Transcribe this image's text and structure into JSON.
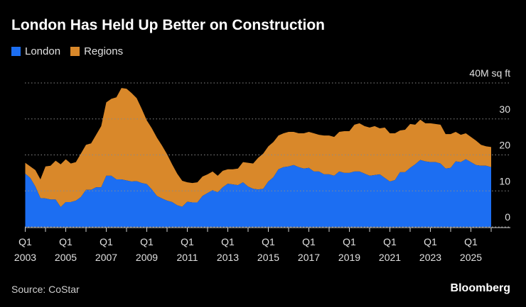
{
  "title": "London Has Held Up Better on Construction",
  "source": "Source: CoStar",
  "brand": "Bloomberg",
  "colors": {
    "London": "#1c6ef2",
    "Regions": "#d9882a",
    "background": "#000000"
  },
  "chart_data": {
    "type": "area",
    "stacked": true,
    "title": "London Has Held Up Better on Construction",
    "ylabel": "40M sq ft",
    "ylim": [
      0,
      40
    ],
    "yticks": [
      0,
      10,
      20,
      30
    ],
    "grid": true,
    "legend_position": "top-left",
    "x_tick_labels": [
      {
        "q": "Q1",
        "year": "2003",
        "i": 0
      },
      {
        "q": "Q1",
        "year": "2005",
        "i": 8
      },
      {
        "q": "Q1",
        "year": "2007",
        "i": 16
      },
      {
        "q": "Q1",
        "year": "2009",
        "i": 24
      },
      {
        "q": "Q1",
        "year": "2011",
        "i": 32
      },
      {
        "q": "Q1",
        "year": "2013",
        "i": 40
      },
      {
        "q": "Q1",
        "year": "2015",
        "i": 48
      },
      {
        "q": "Q1",
        "year": "2017",
        "i": 56
      },
      {
        "q": "Q1",
        "year": "2019",
        "i": 64
      },
      {
        "q": "Q1",
        "year": "2021",
        "i": 72
      },
      {
        "q": "Q1",
        "year": "2023",
        "i": 80
      },
      {
        "q": "Q1",
        "year": "2025",
        "i": 88
      }
    ],
    "series": [
      {
        "name": "London",
        "values": [
          14.8,
          13.6,
          11.2,
          8.0,
          7.9,
          7.6,
          7.6,
          5.5,
          6.9,
          6.9,
          7.3,
          8.3,
          10.3,
          10.3,
          11.0,
          11.0,
          14.2,
          14.2,
          13.2,
          13.2,
          12.9,
          12.6,
          12.7,
          12.2,
          11.9,
          10.4,
          8.6,
          7.9,
          7.3,
          6.9,
          6.0,
          5.6,
          7.0,
          6.8,
          6.8,
          8.6,
          9.4,
          10.2,
          9.6,
          11.0,
          12.0,
          11.8,
          11.6,
          12.4,
          11.2,
          10.6,
          10.4,
          10.6,
          12.6,
          13.8,
          16.0,
          16.6,
          16.8,
          17.2,
          16.6,
          16.2,
          16.4,
          15.4,
          15.4,
          14.6,
          14.6,
          14.2,
          15.4,
          15.0,
          15.0,
          15.4,
          15.4,
          14.8,
          14.2,
          14.4,
          14.6,
          13.6,
          12.6,
          13.0,
          15.2,
          15.2,
          16.4,
          17.4,
          18.6,
          18.2,
          18.0,
          18.0,
          17.6,
          16.2,
          16.4,
          18.2,
          18.0,
          18.8,
          18.0,
          17.2,
          17.0,
          17.0,
          16.6
        ],
        "total": [
          17.8,
          16.8,
          15.8,
          13.2,
          16.8,
          17.0,
          18.4,
          17.4,
          18.8,
          17.6,
          18.0,
          20.4,
          22.8,
          23.2,
          25.6,
          28.0,
          34.6,
          35.6,
          36.0,
          38.6,
          38.4,
          37.2,
          35.8,
          32.8,
          29.6,
          27.4,
          24.8,
          22.6,
          20.2,
          17.4,
          14.8,
          12.8,
          12.4,
          12.2,
          12.4,
          14.0,
          14.6,
          15.4,
          14.2,
          15.6,
          16.0,
          16.0,
          16.2,
          18.0,
          17.8,
          17.6,
          19.2,
          20.4,
          22.4,
          23.6,
          25.4,
          26.0,
          26.4,
          26.4,
          26.0,
          26.0,
          26.4,
          26.0,
          25.6,
          25.4,
          25.4,
          25.0,
          26.4,
          26.6,
          26.6,
          28.4,
          28.8,
          28.0,
          27.6,
          28.0,
          27.4,
          27.6,
          26.0,
          26.0,
          26.8,
          27.0,
          28.6,
          28.4,
          29.8,
          28.8,
          28.8,
          28.6,
          28.4,
          25.8,
          25.8,
          26.4,
          25.6,
          26.0,
          25.0,
          24.0,
          22.8,
          22.4,
          22.2
        ]
      },
      {
        "name": "Regions"
      }
    ]
  }
}
